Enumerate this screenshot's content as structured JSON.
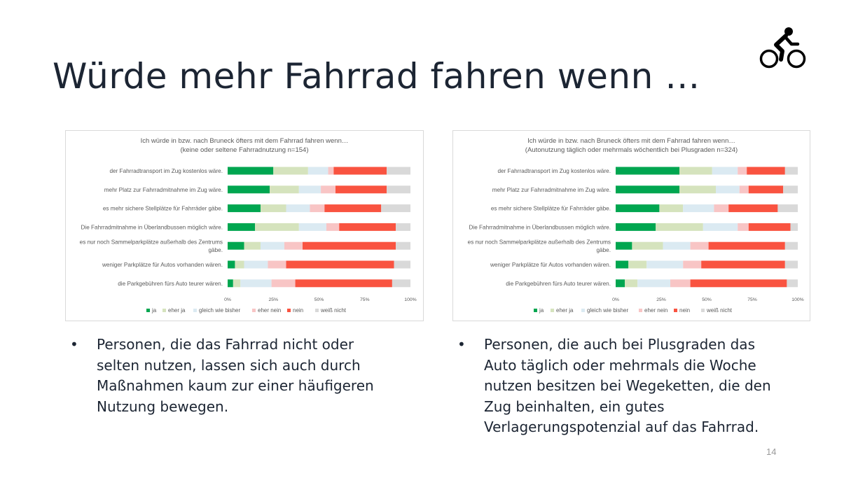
{
  "slide": {
    "title": "Würde mehr Fahrrad fahren wenn …",
    "page_number": "14",
    "icon": "bicycle-icon"
  },
  "bullets": [
    {
      "symbol": "•",
      "lines": [
        "Personen, die das Fahrrad nicht oder",
        "selten nutzen, lassen sich auch durch",
        "Maßnahmen kaum zur einer häufigeren",
        "Nutzung bewegen."
      ]
    },
    {
      "symbol": "•",
      "lines": [
        "Personen, die auch bei Plusgraden das",
        "Auto täglich oder mehrmals die Woche",
        "nutzen besitzen bei Wegeketten, die den",
        "Zug beinhalten, ein gutes",
        "Verlagerungspotenzial auf das Fahrrad."
      ]
    }
  ],
  "chart_data": [
    {
      "type": "bar",
      "orientation": "horizontal",
      "stacked": "percent",
      "title": [
        "Ich würde in bzw. nach Bruneck öfters mit dem Fahrrad fahren wenn…",
        "(keine oder seltene  Fahrradnutzung n=154)"
      ],
      "categories": [
        [
          "der Fahrradtransport im Zug kostenlos wäre."
        ],
        [
          "mehr Platz zur Fahrradmitnahme im Zug wäre."
        ],
        [
          "es mehr sichere Stellplätze für Fahrräder gäbe."
        ],
        [
          "Die Fahrradmitnahme in Überlandbussen möglich wäre."
        ],
        [
          "es nur noch Sammelparkplätze außerhalb des Zentrums",
          "gäbe."
        ],
        [
          "weniger Parkplätze für Autos vorhanden wären."
        ],
        [
          "die Parkgebühren fürs Auto teurer wären."
        ]
      ],
      "xlim": [
        0,
        100
      ],
      "xticks": [
        "0%",
        "25%",
        "50%",
        "75%",
        "100%"
      ],
      "legend_position": "bottom",
      "series": [
        {
          "name": "ja",
          "color": "#00a650",
          "values": [
            25,
            23,
            18,
            15,
            9,
            4,
            3
          ]
        },
        {
          "name": "eher ja",
          "color": "#d5e3bd",
          "values": [
            19,
            16,
            14,
            24,
            9,
            5,
            4
          ]
        },
        {
          "name": "gleich wie bisher",
          "color": "#dbeaf2",
          "values": [
            11,
            12,
            13,
            15,
            13,
            13,
            17
          ]
        },
        {
          "name": "eher nein",
          "color": "#f8c5c5",
          "values": [
            3,
            8,
            8,
            7,
            10,
            10,
            13
          ]
        },
        {
          "name": "nein",
          "color": "#f95340",
          "values": [
            29,
            28,
            31,
            31,
            51,
            59,
            53
          ]
        },
        {
          "name": "weiß nicht",
          "color": "#d9d9d9",
          "values": [
            13,
            13,
            16,
            8,
            8,
            9,
            10
          ]
        }
      ]
    },
    {
      "type": "bar",
      "orientation": "horizontal",
      "stacked": "percent",
      "title": [
        "Ich würde in bzw. nach Bruneck öfters mit dem Fahrrad fahren wenn…",
        "(Autonutzung täglich oder mehrmals wöchentlich bei Plusgraden n=324)"
      ],
      "categories": [
        [
          "der Fahrradtransport im Zug kostenlos wäre."
        ],
        [
          "mehr Platz zur Fahrradmitnahme im Zug wäre."
        ],
        [
          "es mehr sichere Stellplätze für Fahrräder gäbe."
        ],
        [
          "Die Fahrradmitnahme in Überlandbussen möglich wäre."
        ],
        [
          "es nur noch Sammelparkplätze außerhalb des Zentrums",
          "gäbe."
        ],
        [
          "weniger Parkplätze für Autos vorhanden wären."
        ],
        [
          "die Parkgebühren fürs Auto teurer wären."
        ]
      ],
      "xlim": [
        0,
        100
      ],
      "xticks": [
        "0%",
        "25%",
        "50%",
        "75%",
        "100%"
      ],
      "legend_position": "bottom",
      "series": [
        {
          "name": "ja",
          "color": "#00a650",
          "values": [
            35,
            35,
            24,
            22,
            9,
            7,
            5
          ]
        },
        {
          "name": "eher ja",
          "color": "#d5e3bd",
          "values": [
            18,
            20,
            13,
            26,
            17,
            10,
            7
          ]
        },
        {
          "name": "gleich wie bisher",
          "color": "#dbeaf2",
          "values": [
            14,
            13,
            17,
            19,
            15,
            20,
            18
          ]
        },
        {
          "name": "eher nein",
          "color": "#f8c5c5",
          "values": [
            5,
            5,
            8,
            6,
            10,
            10,
            11
          ]
        },
        {
          "name": "nein",
          "color": "#f95340",
          "values": [
            21,
            19,
            27,
            23,
            42,
            46,
            53
          ]
        },
        {
          "name": "weiß nicht",
          "color": "#d9d9d9",
          "values": [
            7,
            8,
            11,
            4,
            7,
            7,
            6
          ]
        }
      ]
    }
  ]
}
